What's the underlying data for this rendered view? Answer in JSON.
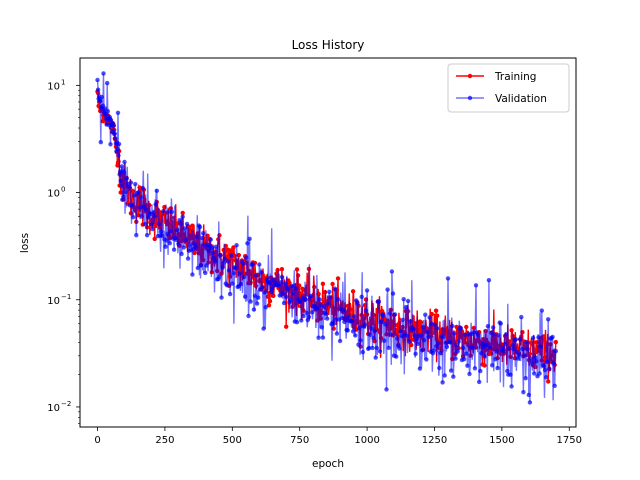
{
  "chart_data": {
    "type": "line",
    "title": "Loss History",
    "xlabel": "epoch",
    "ylabel": "loss",
    "xlim": [
      -65,
      1775
    ],
    "ylim": [
      0.0065,
      18
    ],
    "yscale": "log",
    "grid": false,
    "legend_position": "top-right",
    "x_ticks": [
      0,
      250,
      500,
      750,
      1000,
      1250,
      1500,
      1750
    ],
    "x_tick_labels": [
      "0",
      "250",
      "500",
      "750",
      "1000",
      "1250",
      "1500",
      "1750"
    ],
    "y_ticks": [
      0.01,
      0.1,
      1,
      10
    ],
    "y_tick_labels": [
      "10",
      "10",
      "10",
      "10"
    ],
    "y_tick_exponents": [
      "−2",
      "−1",
      "0",
      "1"
    ],
    "epochs": 1700,
    "series": [
      {
        "name": "Training",
        "color": "#ff0000",
        "alpha": 1.0,
        "marker": "circle",
        "anchors": [
          [
            0,
            9.0
          ],
          [
            5,
            6.2
          ],
          [
            20,
            5.6
          ],
          [
            40,
            4.8
          ],
          [
            60,
            3.8
          ],
          [
            75,
            2.2
          ],
          [
            90,
            1.35
          ],
          [
            120,
            0.95
          ],
          [
            160,
            0.78
          ],
          [
            200,
            0.62
          ],
          [
            250,
            0.52
          ],
          [
            300,
            0.42
          ],
          [
            350,
            0.35
          ],
          [
            400,
            0.3
          ],
          [
            450,
            0.26
          ],
          [
            500,
            0.22
          ],
          [
            600,
            0.16
          ],
          [
            700,
            0.125
          ],
          [
            800,
            0.1
          ],
          [
            900,
            0.082
          ],
          [
            1000,
            0.068
          ],
          [
            1100,
            0.058
          ],
          [
            1200,
            0.05
          ],
          [
            1300,
            0.045
          ],
          [
            1400,
            0.041
          ],
          [
            1500,
            0.037
          ],
          [
            1600,
            0.034
          ],
          [
            1700,
            0.031
          ]
        ]
      },
      {
        "name": "Validation",
        "color": "#0000ff",
        "alpha": 0.55,
        "marker": "circle",
        "anchors": [
          [
            0,
            11.5
          ],
          [
            5,
            7.0
          ],
          [
            20,
            6.0
          ],
          [
            40,
            5.0
          ],
          [
            60,
            4.0
          ],
          [
            75,
            2.4
          ],
          [
            90,
            1.3
          ],
          [
            120,
            0.9
          ],
          [
            160,
            0.72
          ],
          [
            200,
            0.56
          ],
          [
            250,
            0.46
          ],
          [
            300,
            0.37
          ],
          [
            350,
            0.31
          ],
          [
            400,
            0.26
          ],
          [
            450,
            0.22
          ],
          [
            500,
            0.19
          ],
          [
            600,
            0.14
          ],
          [
            700,
            0.11
          ],
          [
            800,
            0.088
          ],
          [
            900,
            0.072
          ],
          [
            1000,
            0.06
          ],
          [
            1100,
            0.051
          ],
          [
            1200,
            0.044
          ],
          [
            1300,
            0.039
          ],
          [
            1400,
            0.035
          ],
          [
            1500,
            0.032
          ],
          [
            1600,
            0.029
          ],
          [
            1700,
            0.026
          ]
        ]
      }
    ]
  }
}
